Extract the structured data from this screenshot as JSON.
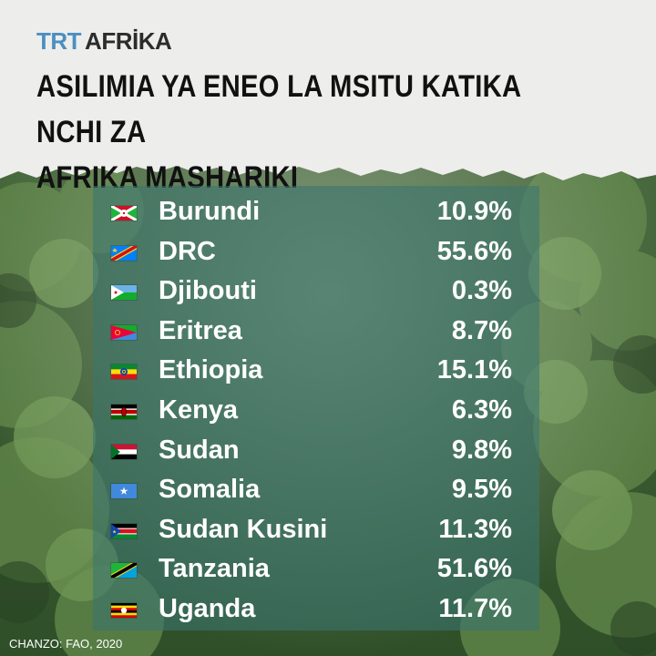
{
  "brand": {
    "trt": "TRT",
    "afrika": "AFRİKA",
    "trt_color": "#4b8fc2"
  },
  "title": "ASILIMIA YA ENEO LA MSITU KATIKA NCHI ZA\nAFRIKA MASHARIKI",
  "source": "CHANZO: FAO, 2020",
  "chart_data": {
    "type": "table",
    "columns": [
      "country",
      "forest_area_percent"
    ],
    "rows": [
      {
        "flag": "burundi-flag-icon",
        "country": "Burundi",
        "display": "10.9%",
        "value": 10.9
      },
      {
        "flag": "drc-flag-icon",
        "country": "DRC",
        "display": "55.6%",
        "value": 55.6
      },
      {
        "flag": "djibouti-flag-icon",
        "country": "Djibouti",
        "display": "0.3%",
        "value": 0.3
      },
      {
        "flag": "eritrea-flag-icon",
        "country": "Eritrea",
        "display": "8.7%",
        "value": 8.7
      },
      {
        "flag": "ethiopia-flag-icon",
        "country": "Ethiopia",
        "display": "15.1%",
        "value": 15.1
      },
      {
        "flag": "kenya-flag-icon",
        "country": "Kenya",
        "display": "6.3%",
        "value": 6.3
      },
      {
        "flag": "sudan-flag-icon",
        "country": "Sudan",
        "display": "9.8%",
        "value": 9.8
      },
      {
        "flag": "somalia-flag-icon",
        "country": "Somalia",
        "display": "9.5%",
        "value": 9.5
      },
      {
        "flag": "south-sudan-flag-icon",
        "country": "Sudan Kusini",
        "display": "11.3%",
        "value": 11.3
      },
      {
        "flag": "tanzania-flag-icon",
        "country": "Tanzania",
        "display": "51.6%",
        "value": 51.6
      },
      {
        "flag": "uganda-flag-icon",
        "country": "Uganda",
        "display": "11.7%",
        "value": 11.7
      }
    ]
  }
}
